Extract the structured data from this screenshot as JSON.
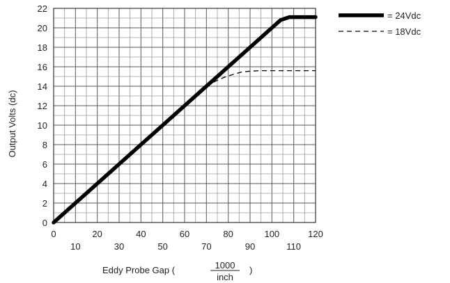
{
  "chart_data": {
    "type": "line",
    "xlabel": "Eddy Probe Gap (",
    "xlabel_fraction_num": "1000",
    "xlabel_fraction_den": "inch",
    "xlabel_close": ")",
    "ylabel": "Output Volts (dc)",
    "xlim": [
      0,
      120
    ],
    "ylim": [
      0,
      22
    ],
    "x_ticks_upper": [
      "0",
      "20",
      "40",
      "60",
      "80",
      "100",
      "120"
    ],
    "x_ticks_lower": [
      "10",
      "30",
      "50",
      "70",
      "90",
      "110"
    ],
    "y_ticks": [
      "0",
      "2",
      "4",
      "6",
      "8",
      "10",
      "12",
      "14",
      "16",
      "18",
      "20",
      "22"
    ],
    "grid": true,
    "legend_position": "top-right",
    "series": [
      {
        "name": "= 24Vdc",
        "style": "solid-thick",
        "color": "#000000",
        "x": [
          0,
          10,
          20,
          30,
          40,
          50,
          60,
          70,
          80,
          90,
          100,
          104,
          108,
          112,
          120
        ],
        "y": [
          0,
          2,
          4,
          6,
          8,
          10,
          12,
          14,
          16,
          18,
          20,
          20.8,
          21.1,
          21.1,
          21.1
        ]
      },
      {
        "name": "= 18Vdc",
        "style": "dashed",
        "color": "#000000",
        "x": [
          70,
          74,
          78,
          82,
          86,
          90,
          95,
          100,
          110,
          120
        ],
        "y": [
          14,
          14.5,
          14.9,
          15.2,
          15.45,
          15.55,
          15.6,
          15.6,
          15.6,
          15.6
        ]
      }
    ]
  }
}
